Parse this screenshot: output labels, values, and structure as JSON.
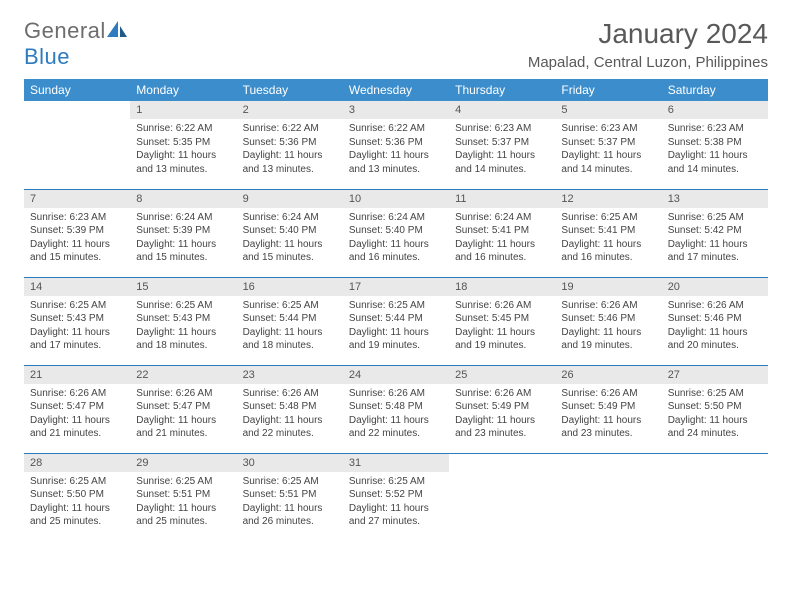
{
  "logo": {
    "word1": "General",
    "word2": "Blue"
  },
  "title": "January 2024",
  "location": "Mapalad, Central Luzon, Philippines",
  "colors": {
    "header_bg": "#3c8dcc",
    "header_text": "#ffffff",
    "daynum_bg": "#e9e9e9",
    "border": "#2e7bbf",
    "logo_gray": "#6d6d6d",
    "logo_blue": "#2e7bbf",
    "text": "#444444",
    "title_color": "#595959"
  },
  "day_labels": [
    "Sunday",
    "Monday",
    "Tuesday",
    "Wednesday",
    "Thursday",
    "Friday",
    "Saturday"
  ],
  "weeks": [
    [
      {
        "num": "",
        "sunrise": "",
        "sunset": "",
        "daylight": ""
      },
      {
        "num": "1",
        "sunrise": "Sunrise: 6:22 AM",
        "sunset": "Sunset: 5:35 PM",
        "daylight": "Daylight: 11 hours and 13 minutes."
      },
      {
        "num": "2",
        "sunrise": "Sunrise: 6:22 AM",
        "sunset": "Sunset: 5:36 PM",
        "daylight": "Daylight: 11 hours and 13 minutes."
      },
      {
        "num": "3",
        "sunrise": "Sunrise: 6:22 AM",
        "sunset": "Sunset: 5:36 PM",
        "daylight": "Daylight: 11 hours and 13 minutes."
      },
      {
        "num": "4",
        "sunrise": "Sunrise: 6:23 AM",
        "sunset": "Sunset: 5:37 PM",
        "daylight": "Daylight: 11 hours and 14 minutes."
      },
      {
        "num": "5",
        "sunrise": "Sunrise: 6:23 AM",
        "sunset": "Sunset: 5:37 PM",
        "daylight": "Daylight: 11 hours and 14 minutes."
      },
      {
        "num": "6",
        "sunrise": "Sunrise: 6:23 AM",
        "sunset": "Sunset: 5:38 PM",
        "daylight": "Daylight: 11 hours and 14 minutes."
      }
    ],
    [
      {
        "num": "7",
        "sunrise": "Sunrise: 6:23 AM",
        "sunset": "Sunset: 5:39 PM",
        "daylight": "Daylight: 11 hours and 15 minutes."
      },
      {
        "num": "8",
        "sunrise": "Sunrise: 6:24 AM",
        "sunset": "Sunset: 5:39 PM",
        "daylight": "Daylight: 11 hours and 15 minutes."
      },
      {
        "num": "9",
        "sunrise": "Sunrise: 6:24 AM",
        "sunset": "Sunset: 5:40 PM",
        "daylight": "Daylight: 11 hours and 15 minutes."
      },
      {
        "num": "10",
        "sunrise": "Sunrise: 6:24 AM",
        "sunset": "Sunset: 5:40 PM",
        "daylight": "Daylight: 11 hours and 16 minutes."
      },
      {
        "num": "11",
        "sunrise": "Sunrise: 6:24 AM",
        "sunset": "Sunset: 5:41 PM",
        "daylight": "Daylight: 11 hours and 16 minutes."
      },
      {
        "num": "12",
        "sunrise": "Sunrise: 6:25 AM",
        "sunset": "Sunset: 5:41 PM",
        "daylight": "Daylight: 11 hours and 16 minutes."
      },
      {
        "num": "13",
        "sunrise": "Sunrise: 6:25 AM",
        "sunset": "Sunset: 5:42 PM",
        "daylight": "Daylight: 11 hours and 17 minutes."
      }
    ],
    [
      {
        "num": "14",
        "sunrise": "Sunrise: 6:25 AM",
        "sunset": "Sunset: 5:43 PM",
        "daylight": "Daylight: 11 hours and 17 minutes."
      },
      {
        "num": "15",
        "sunrise": "Sunrise: 6:25 AM",
        "sunset": "Sunset: 5:43 PM",
        "daylight": "Daylight: 11 hours and 18 minutes."
      },
      {
        "num": "16",
        "sunrise": "Sunrise: 6:25 AM",
        "sunset": "Sunset: 5:44 PM",
        "daylight": "Daylight: 11 hours and 18 minutes."
      },
      {
        "num": "17",
        "sunrise": "Sunrise: 6:25 AM",
        "sunset": "Sunset: 5:44 PM",
        "daylight": "Daylight: 11 hours and 19 minutes."
      },
      {
        "num": "18",
        "sunrise": "Sunrise: 6:26 AM",
        "sunset": "Sunset: 5:45 PM",
        "daylight": "Daylight: 11 hours and 19 minutes."
      },
      {
        "num": "19",
        "sunrise": "Sunrise: 6:26 AM",
        "sunset": "Sunset: 5:46 PM",
        "daylight": "Daylight: 11 hours and 19 minutes."
      },
      {
        "num": "20",
        "sunrise": "Sunrise: 6:26 AM",
        "sunset": "Sunset: 5:46 PM",
        "daylight": "Daylight: 11 hours and 20 minutes."
      }
    ],
    [
      {
        "num": "21",
        "sunrise": "Sunrise: 6:26 AM",
        "sunset": "Sunset: 5:47 PM",
        "daylight": "Daylight: 11 hours and 21 minutes."
      },
      {
        "num": "22",
        "sunrise": "Sunrise: 6:26 AM",
        "sunset": "Sunset: 5:47 PM",
        "daylight": "Daylight: 11 hours and 21 minutes."
      },
      {
        "num": "23",
        "sunrise": "Sunrise: 6:26 AM",
        "sunset": "Sunset: 5:48 PM",
        "daylight": "Daylight: 11 hours and 22 minutes."
      },
      {
        "num": "24",
        "sunrise": "Sunrise: 6:26 AM",
        "sunset": "Sunset: 5:48 PM",
        "daylight": "Daylight: 11 hours and 22 minutes."
      },
      {
        "num": "25",
        "sunrise": "Sunrise: 6:26 AM",
        "sunset": "Sunset: 5:49 PM",
        "daylight": "Daylight: 11 hours and 23 minutes."
      },
      {
        "num": "26",
        "sunrise": "Sunrise: 6:26 AM",
        "sunset": "Sunset: 5:49 PM",
        "daylight": "Daylight: 11 hours and 23 minutes."
      },
      {
        "num": "27",
        "sunrise": "Sunrise: 6:25 AM",
        "sunset": "Sunset: 5:50 PM",
        "daylight": "Daylight: 11 hours and 24 minutes."
      }
    ],
    [
      {
        "num": "28",
        "sunrise": "Sunrise: 6:25 AM",
        "sunset": "Sunset: 5:50 PM",
        "daylight": "Daylight: 11 hours and 25 minutes."
      },
      {
        "num": "29",
        "sunrise": "Sunrise: 6:25 AM",
        "sunset": "Sunset: 5:51 PM",
        "daylight": "Daylight: 11 hours and 25 minutes."
      },
      {
        "num": "30",
        "sunrise": "Sunrise: 6:25 AM",
        "sunset": "Sunset: 5:51 PM",
        "daylight": "Daylight: 11 hours and 26 minutes."
      },
      {
        "num": "31",
        "sunrise": "Sunrise: 6:25 AM",
        "sunset": "Sunset: 5:52 PM",
        "daylight": "Daylight: 11 hours and 27 minutes."
      },
      {
        "num": "",
        "sunrise": "",
        "sunset": "",
        "daylight": ""
      },
      {
        "num": "",
        "sunrise": "",
        "sunset": "",
        "daylight": ""
      },
      {
        "num": "",
        "sunrise": "",
        "sunset": "",
        "daylight": ""
      }
    ]
  ]
}
